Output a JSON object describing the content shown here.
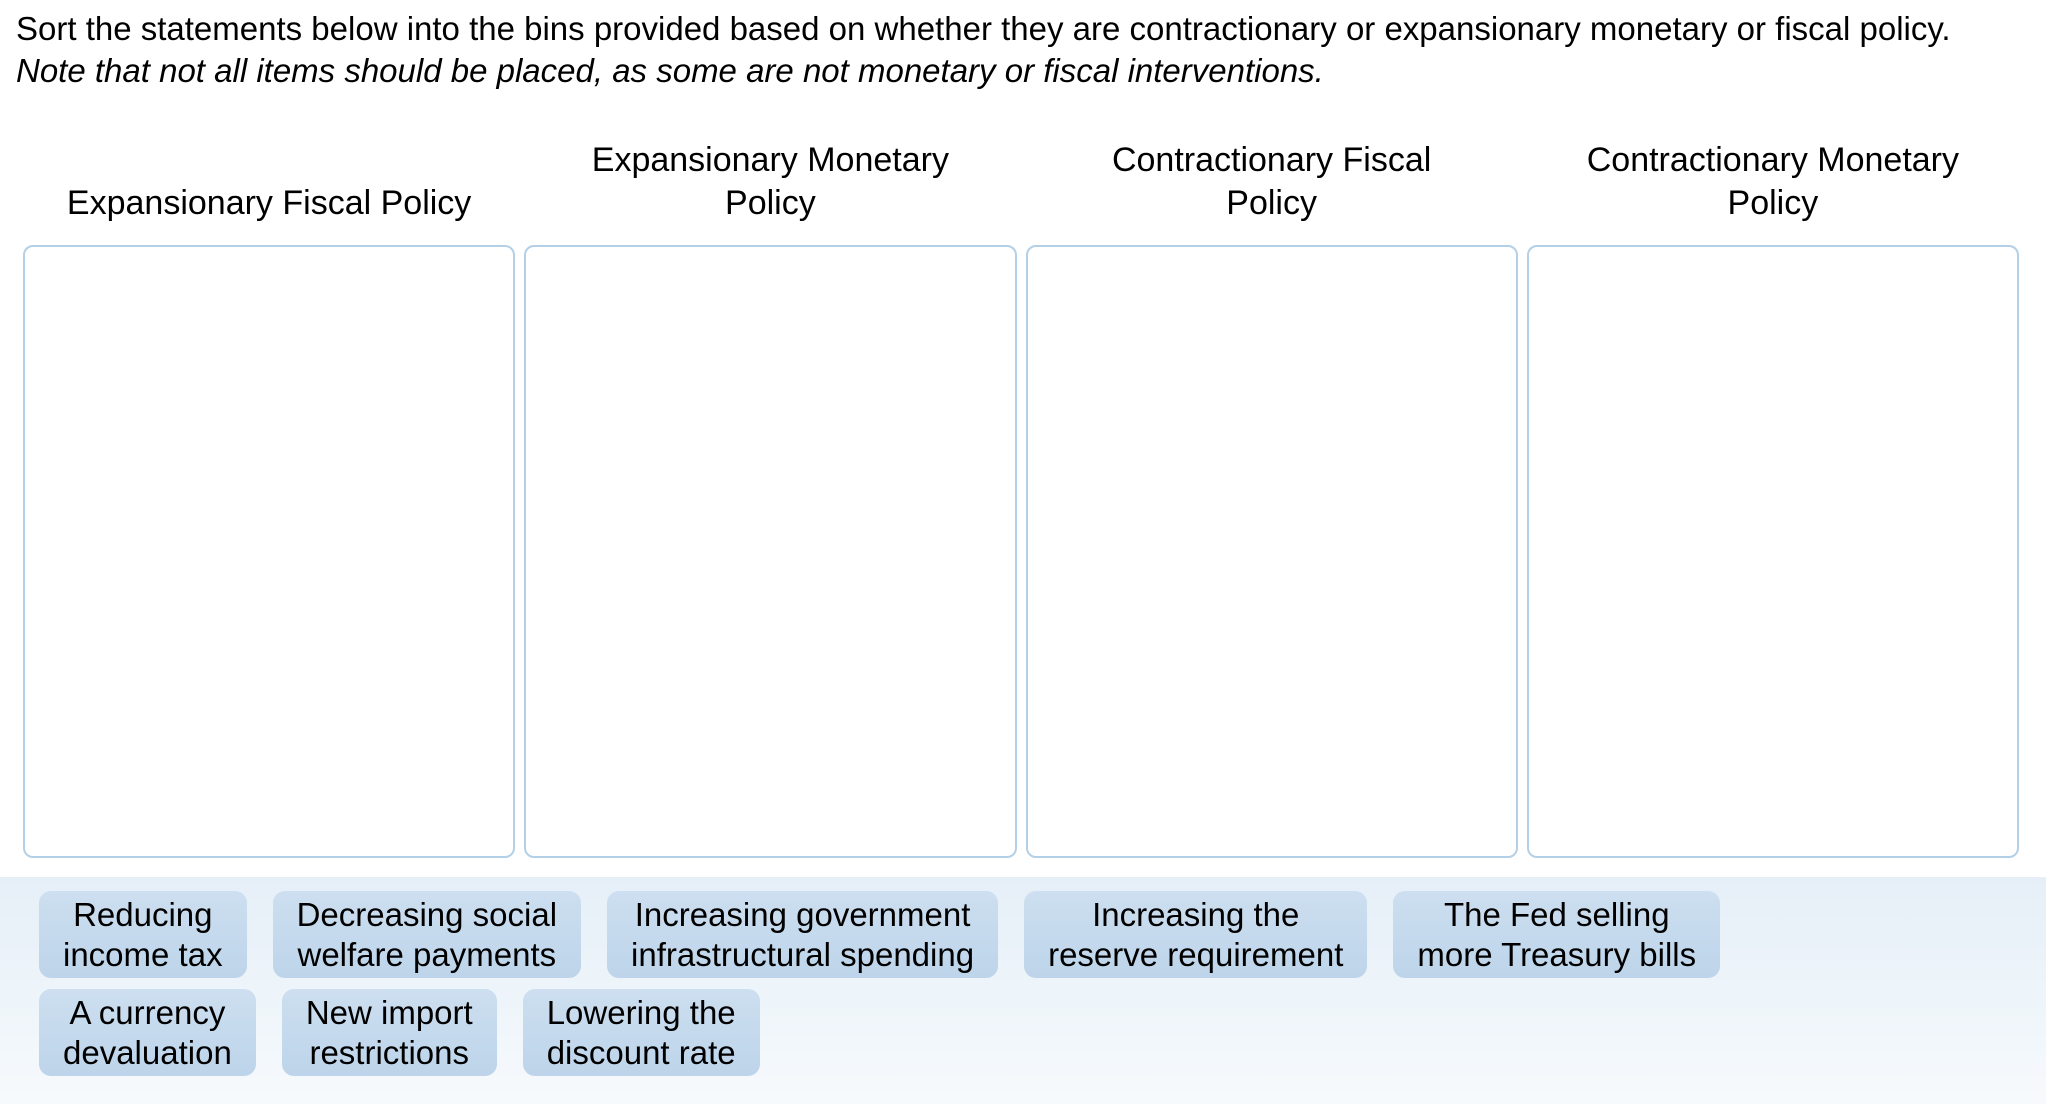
{
  "instructions": {
    "normal": "Sort the statements below into the bins provided based on whether they are contractionary or expansionary monetary or fiscal policy. ",
    "italic": "Note that not all items should be placed, as some are not monetary or fiscal interventions."
  },
  "bins": [
    {
      "title": "Expansionary Fiscal Policy"
    },
    {
      "title": "Expansionary Monetary\nPolicy"
    },
    {
      "title": "Contractionary Fiscal\nPolicy"
    },
    {
      "title": "Contractionary Monetary\nPolicy"
    }
  ],
  "tray": {
    "items": [
      {
        "text": "Reducing\nincome tax"
      },
      {
        "text": "Decreasing social\nwelfare payments"
      },
      {
        "text": "Increasing government\ninfrastructural spending"
      },
      {
        "text": "Increasing the\nreserve requirement"
      },
      {
        "text": "The Fed selling\nmore Treasury bills"
      },
      {
        "text": "A currency\ndevaluation"
      },
      {
        "text": "New import\nrestrictions"
      },
      {
        "text": "Lowering the\ndiscount rate"
      }
    ]
  },
  "colors": {
    "chip_bg": "#c4d9ee",
    "tray_bg": "#e9f2f9",
    "bin_border": "#b3d0e7",
    "text": "#000000"
  }
}
